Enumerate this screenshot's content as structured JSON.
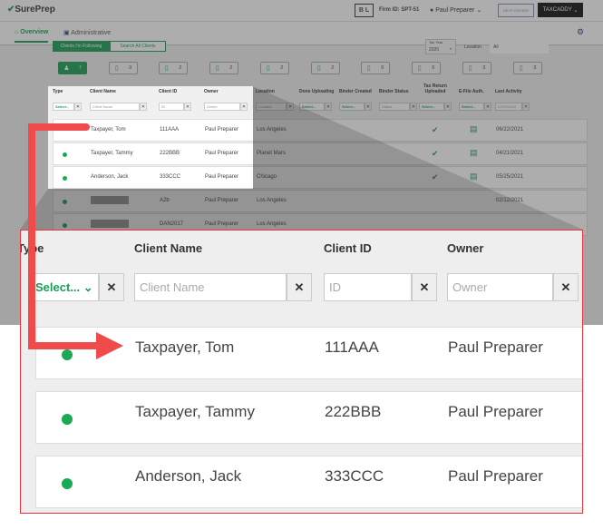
{
  "header": {
    "logo": "SurePrep",
    "firm_badge": "B L",
    "firm_id": "Firm ID: SPT-51",
    "user": "Paul Preparer",
    "help_center": "HELP CENTER",
    "taxcaddy": "TAXCADDY"
  },
  "nav": {
    "tabs": [
      {
        "label": "Overview",
        "icon": "home-icon",
        "active": true
      },
      {
        "label": "Administrative",
        "icon": "id-card-icon"
      }
    ],
    "settings_icon": "gear-icon"
  },
  "toolbar": {
    "toggle": [
      "Clients I'm Following",
      "Search All Clients"
    ],
    "tax_year_label": "Tax Year",
    "tax_year": "2020",
    "location_label": "Location",
    "location_value": "All"
  },
  "stats": [
    {
      "icon": "person-icon",
      "count": "7",
      "active": true
    },
    {
      "icon": "comment-icon",
      "count": "0"
    },
    {
      "icon": "clipboard-icon",
      "count": "2"
    },
    {
      "icon": "document-icon",
      "count": "2"
    },
    {
      "icon": "document-check-icon",
      "count": "2"
    },
    {
      "icon": "document-arrow-icon",
      "count": "2"
    },
    {
      "icon": "document-gear-icon",
      "count": "0"
    },
    {
      "icon": "binder-icon",
      "count": "0"
    },
    {
      "icon": "document-refresh-icon",
      "count": "3"
    },
    {
      "icon": "efile-icon",
      "count": "3"
    }
  ],
  "table": {
    "columns": [
      "Type",
      "Client Name",
      "Client ID",
      "Owner",
      "Location",
      "Done Uploading",
      "Binder Created",
      "Binder Status",
      "Tax Return Uploaded",
      "E-File Auth.",
      "Last Activity"
    ],
    "filters": {
      "type": "Select...",
      "client_name": "Client Name",
      "client_id": "ID",
      "owner": "Owner",
      "location": "Location",
      "done_uploading": "Select...",
      "binder_created": "Select...",
      "binder_status": "Status",
      "tax_return": "Select...",
      "efile": "Select...",
      "last_activity": "02/15/2019"
    },
    "rows": [
      {
        "name": "Taxpayer, Tom",
        "id": "111AAA",
        "owner": "Paul Preparer",
        "location": "Los Angeles",
        "tax_return": true,
        "efile": true,
        "last": "06/22/2021"
      },
      {
        "name": "Taxpayer, Tammy",
        "id": "222BBB",
        "owner": "Paul Preparer",
        "location": "Planet Mars",
        "tax_return": true,
        "efile": true,
        "last": "04/21/2021"
      },
      {
        "name": "Anderson, Jack",
        "id": "333CCC",
        "owner": "Paul Preparer",
        "location": "Chicago",
        "tax_return": true,
        "efile": true,
        "last": "05/25/2021"
      },
      {
        "name": "",
        "id": "A2b",
        "owner": "Paul Preparer",
        "location": "Los Angeles",
        "last": "02/12/2021"
      },
      {
        "name": "",
        "id": "DAN2017",
        "owner": "Paul Preparer",
        "location": "Los Angeles",
        "last": ""
      }
    ]
  },
  "colors": {
    "brand_green": "#1a9e55",
    "callout_red": "#e8343a",
    "arrow_red": "#f04a4a"
  }
}
